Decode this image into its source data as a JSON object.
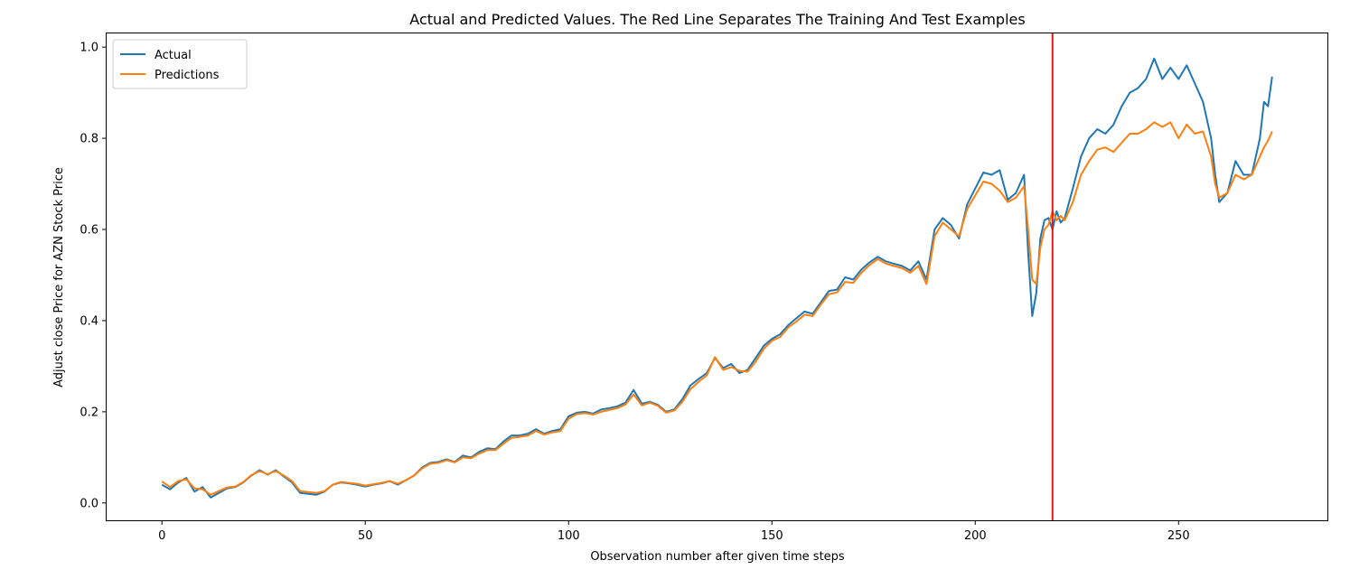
{
  "chart_data": {
    "type": "line",
    "title": "Actual and Predicted Values. The Red Line Separates The Training And Test Examples",
    "xlabel": "Observation number after given time steps",
    "ylabel": "Adjust close Price for AZN Stock Price",
    "xlim": [
      -13.6,
      286.6
    ],
    "ylim": [
      -0.038,
      1.03
    ],
    "x_ticks": [
      0,
      50,
      100,
      150,
      200,
      250
    ],
    "x_tick_labels": [
      "0",
      "50",
      "100",
      "150",
      "200",
      "250"
    ],
    "y_ticks": [
      0.0,
      0.2,
      0.4,
      0.6,
      0.8,
      1.0
    ],
    "y_tick_labels": [
      "0.0",
      "0.2",
      "0.4",
      "0.6",
      "0.8",
      "1.0"
    ],
    "grid": false,
    "legend": {
      "position": "upper left"
    },
    "split_line": {
      "x": 219,
      "color": "#e31a1c"
    },
    "series": [
      {
        "name": "Actual",
        "color": "#1f77b4",
        "points": [
          [
            0,
            0.04
          ],
          [
            2,
            0.03
          ],
          [
            4,
            0.045
          ],
          [
            6,
            0.055
          ],
          [
            8,
            0.025
          ],
          [
            10,
            0.035
          ],
          [
            12,
            0.012
          ],
          [
            14,
            0.022
          ],
          [
            16,
            0.032
          ],
          [
            18,
            0.035
          ],
          [
            20,
            0.045
          ],
          [
            22,
            0.06
          ],
          [
            24,
            0.072
          ],
          [
            26,
            0.062
          ],
          [
            28,
            0.072
          ],
          [
            30,
            0.058
          ],
          [
            32,
            0.045
          ],
          [
            34,
            0.022
          ],
          [
            36,
            0.02
          ],
          [
            38,
            0.018
          ],
          [
            40,
            0.025
          ],
          [
            42,
            0.04
          ],
          [
            44,
            0.045
          ],
          [
            46,
            0.043
          ],
          [
            48,
            0.04
          ],
          [
            50,
            0.036
          ],
          [
            52,
            0.04
          ],
          [
            54,
            0.043
          ],
          [
            56,
            0.048
          ],
          [
            58,
            0.04
          ],
          [
            60,
            0.05
          ],
          [
            62,
            0.06
          ],
          [
            64,
            0.078
          ],
          [
            66,
            0.088
          ],
          [
            68,
            0.09
          ],
          [
            70,
            0.096
          ],
          [
            72,
            0.09
          ],
          [
            74,
            0.104
          ],
          [
            76,
            0.1
          ],
          [
            78,
            0.112
          ],
          [
            80,
            0.12
          ],
          [
            82,
            0.118
          ],
          [
            84,
            0.135
          ],
          [
            86,
            0.148
          ],
          [
            88,
            0.148
          ],
          [
            90,
            0.152
          ],
          [
            92,
            0.162
          ],
          [
            94,
            0.152
          ],
          [
            96,
            0.158
          ],
          [
            98,
            0.162
          ],
          [
            100,
            0.19
          ],
          [
            102,
            0.198
          ],
          [
            104,
            0.2
          ],
          [
            106,
            0.196
          ],
          [
            108,
            0.205
          ],
          [
            110,
            0.208
          ],
          [
            112,
            0.212
          ],
          [
            114,
            0.22
          ],
          [
            116,
            0.248
          ],
          [
            118,
            0.218
          ],
          [
            120,
            0.222
          ],
          [
            122,
            0.215
          ],
          [
            124,
            0.2
          ],
          [
            126,
            0.205
          ],
          [
            128,
            0.228
          ],
          [
            130,
            0.258
          ],
          [
            132,
            0.272
          ],
          [
            134,
            0.285
          ],
          [
            136,
            0.318
          ],
          [
            138,
            0.296
          ],
          [
            140,
            0.305
          ],
          [
            142,
            0.285
          ],
          [
            144,
            0.292
          ],
          [
            146,
            0.318
          ],
          [
            148,
            0.345
          ],
          [
            150,
            0.36
          ],
          [
            152,
            0.37
          ],
          [
            154,
            0.39
          ],
          [
            156,
            0.405
          ],
          [
            158,
            0.42
          ],
          [
            160,
            0.415
          ],
          [
            162,
            0.44
          ],
          [
            164,
            0.465
          ],
          [
            166,
            0.468
          ],
          [
            168,
            0.495
          ],
          [
            170,
            0.49
          ],
          [
            172,
            0.512
          ],
          [
            174,
            0.528
          ],
          [
            176,
            0.54
          ],
          [
            178,
            0.53
          ],
          [
            180,
            0.525
          ],
          [
            182,
            0.52
          ],
          [
            184,
            0.51
          ],
          [
            186,
            0.53
          ],
          [
            188,
            0.49
          ],
          [
            190,
            0.6
          ],
          [
            192,
            0.625
          ],
          [
            194,
            0.61
          ],
          [
            196,
            0.58
          ],
          [
            198,
            0.655
          ],
          [
            200,
            0.69
          ],
          [
            202,
            0.725
          ],
          [
            204,
            0.72
          ],
          [
            206,
            0.73
          ],
          [
            208,
            0.665
          ],
          [
            210,
            0.68
          ],
          [
            212,
            0.72
          ],
          [
            213,
            0.55
          ],
          [
            214,
            0.41
          ],
          [
            215,
            0.46
          ],
          [
            216,
            0.58
          ],
          [
            217,
            0.62
          ],
          [
            218,
            0.625
          ],
          [
            219,
            0.6
          ],
          [
            220,
            0.64
          ],
          [
            221,
            0.615
          ],
          [
            222,
            0.625
          ],
          [
            224,
            0.69
          ],
          [
            226,
            0.76
          ],
          [
            228,
            0.8
          ],
          [
            230,
            0.82
          ],
          [
            232,
            0.81
          ],
          [
            234,
            0.83
          ],
          [
            236,
            0.87
          ],
          [
            238,
            0.9
          ],
          [
            240,
            0.91
          ],
          [
            242,
            0.93
          ],
          [
            244,
            0.975
          ],
          [
            246,
            0.93
          ],
          [
            248,
            0.955
          ],
          [
            250,
            0.93
          ],
          [
            252,
            0.96
          ],
          [
            254,
            0.92
          ],
          [
            256,
            0.88
          ],
          [
            258,
            0.8
          ],
          [
            259,
            0.72
          ],
          [
            260,
            0.66
          ],
          [
            262,
            0.68
          ],
          [
            264,
            0.75
          ],
          [
            266,
            0.72
          ],
          [
            268,
            0.72
          ],
          [
            270,
            0.8
          ],
          [
            271,
            0.88
          ],
          [
            272,
            0.87
          ],
          [
            273,
            0.935
          ]
        ]
      },
      {
        "name": "Predictions",
        "color": "#ff7f0e",
        "points": [
          [
            0,
            0.047
          ],
          [
            2,
            0.035
          ],
          [
            4,
            0.048
          ],
          [
            6,
            0.052
          ],
          [
            8,
            0.032
          ],
          [
            10,
            0.03
          ],
          [
            12,
            0.018
          ],
          [
            14,
            0.026
          ],
          [
            16,
            0.034
          ],
          [
            18,
            0.036
          ],
          [
            20,
            0.046
          ],
          [
            22,
            0.061
          ],
          [
            24,
            0.07
          ],
          [
            26,
            0.063
          ],
          [
            28,
            0.07
          ],
          [
            30,
            0.06
          ],
          [
            32,
            0.048
          ],
          [
            34,
            0.026
          ],
          [
            36,
            0.024
          ],
          [
            38,
            0.022
          ],
          [
            40,
            0.026
          ],
          [
            42,
            0.04
          ],
          [
            44,
            0.046
          ],
          [
            46,
            0.044
          ],
          [
            48,
            0.042
          ],
          [
            50,
            0.038
          ],
          [
            52,
            0.041
          ],
          [
            54,
            0.044
          ],
          [
            56,
            0.048
          ],
          [
            58,
            0.042
          ],
          [
            60,
            0.05
          ],
          [
            62,
            0.06
          ],
          [
            64,
            0.076
          ],
          [
            66,
            0.086
          ],
          [
            68,
            0.088
          ],
          [
            70,
            0.094
          ],
          [
            72,
            0.089
          ],
          [
            74,
            0.1
          ],
          [
            76,
            0.098
          ],
          [
            78,
            0.108
          ],
          [
            80,
            0.116
          ],
          [
            82,
            0.116
          ],
          [
            84,
            0.13
          ],
          [
            86,
            0.143
          ],
          [
            88,
            0.145
          ],
          [
            90,
            0.148
          ],
          [
            92,
            0.158
          ],
          [
            94,
            0.15
          ],
          [
            96,
            0.155
          ],
          [
            98,
            0.158
          ],
          [
            100,
            0.185
          ],
          [
            102,
            0.195
          ],
          [
            104,
            0.197
          ],
          [
            106,
            0.194
          ],
          [
            108,
            0.2
          ],
          [
            110,
            0.204
          ],
          [
            112,
            0.208
          ],
          [
            114,
            0.216
          ],
          [
            116,
            0.238
          ],
          [
            118,
            0.214
          ],
          [
            120,
            0.22
          ],
          [
            122,
            0.213
          ],
          [
            124,
            0.198
          ],
          [
            126,
            0.203
          ],
          [
            128,
            0.222
          ],
          [
            130,
            0.25
          ],
          [
            132,
            0.266
          ],
          [
            134,
            0.28
          ],
          [
            136,
            0.32
          ],
          [
            138,
            0.292
          ],
          [
            140,
            0.298
          ],
          [
            142,
            0.29
          ],
          [
            144,
            0.288
          ],
          [
            146,
            0.31
          ],
          [
            148,
            0.338
          ],
          [
            150,
            0.356
          ],
          [
            152,
            0.364
          ],
          [
            154,
            0.385
          ],
          [
            156,
            0.398
          ],
          [
            158,
            0.413
          ],
          [
            160,
            0.41
          ],
          [
            162,
            0.435
          ],
          [
            164,
            0.458
          ],
          [
            166,
            0.462
          ],
          [
            168,
            0.485
          ],
          [
            170,
            0.483
          ],
          [
            172,
            0.505
          ],
          [
            174,
            0.522
          ],
          [
            176,
            0.535
          ],
          [
            178,
            0.525
          ],
          [
            180,
            0.52
          ],
          [
            182,
            0.515
          ],
          [
            184,
            0.505
          ],
          [
            186,
            0.52
          ],
          [
            188,
            0.48
          ],
          [
            190,
            0.585
          ],
          [
            192,
            0.615
          ],
          [
            194,
            0.6
          ],
          [
            196,
            0.585
          ],
          [
            198,
            0.645
          ],
          [
            200,
            0.675
          ],
          [
            202,
            0.705
          ],
          [
            204,
            0.7
          ],
          [
            206,
            0.685
          ],
          [
            208,
            0.66
          ],
          [
            210,
            0.67
          ],
          [
            212,
            0.695
          ],
          [
            213,
            0.6
          ],
          [
            214,
            0.49
          ],
          [
            215,
            0.48
          ],
          [
            216,
            0.56
          ],
          [
            217,
            0.6
          ],
          [
            218,
            0.61
          ],
          [
            219,
            0.64
          ],
          [
            220,
            0.62
          ],
          [
            221,
            0.63
          ],
          [
            222,
            0.62
          ],
          [
            224,
            0.66
          ],
          [
            226,
            0.72
          ],
          [
            228,
            0.75
          ],
          [
            230,
            0.775
          ],
          [
            232,
            0.78
          ],
          [
            234,
            0.77
          ],
          [
            236,
            0.79
          ],
          [
            238,
            0.81
          ],
          [
            240,
            0.81
          ],
          [
            242,
            0.82
          ],
          [
            244,
            0.835
          ],
          [
            246,
            0.825
          ],
          [
            248,
            0.835
          ],
          [
            250,
            0.8
          ],
          [
            252,
            0.83
          ],
          [
            254,
            0.81
          ],
          [
            256,
            0.815
          ],
          [
            258,
            0.76
          ],
          [
            259,
            0.7
          ],
          [
            260,
            0.67
          ],
          [
            262,
            0.68
          ],
          [
            264,
            0.72
          ],
          [
            266,
            0.71
          ],
          [
            268,
            0.72
          ],
          [
            270,
            0.76
          ],
          [
            271,
            0.78
          ],
          [
            272,
            0.795
          ],
          [
            273,
            0.815
          ]
        ]
      }
    ]
  }
}
